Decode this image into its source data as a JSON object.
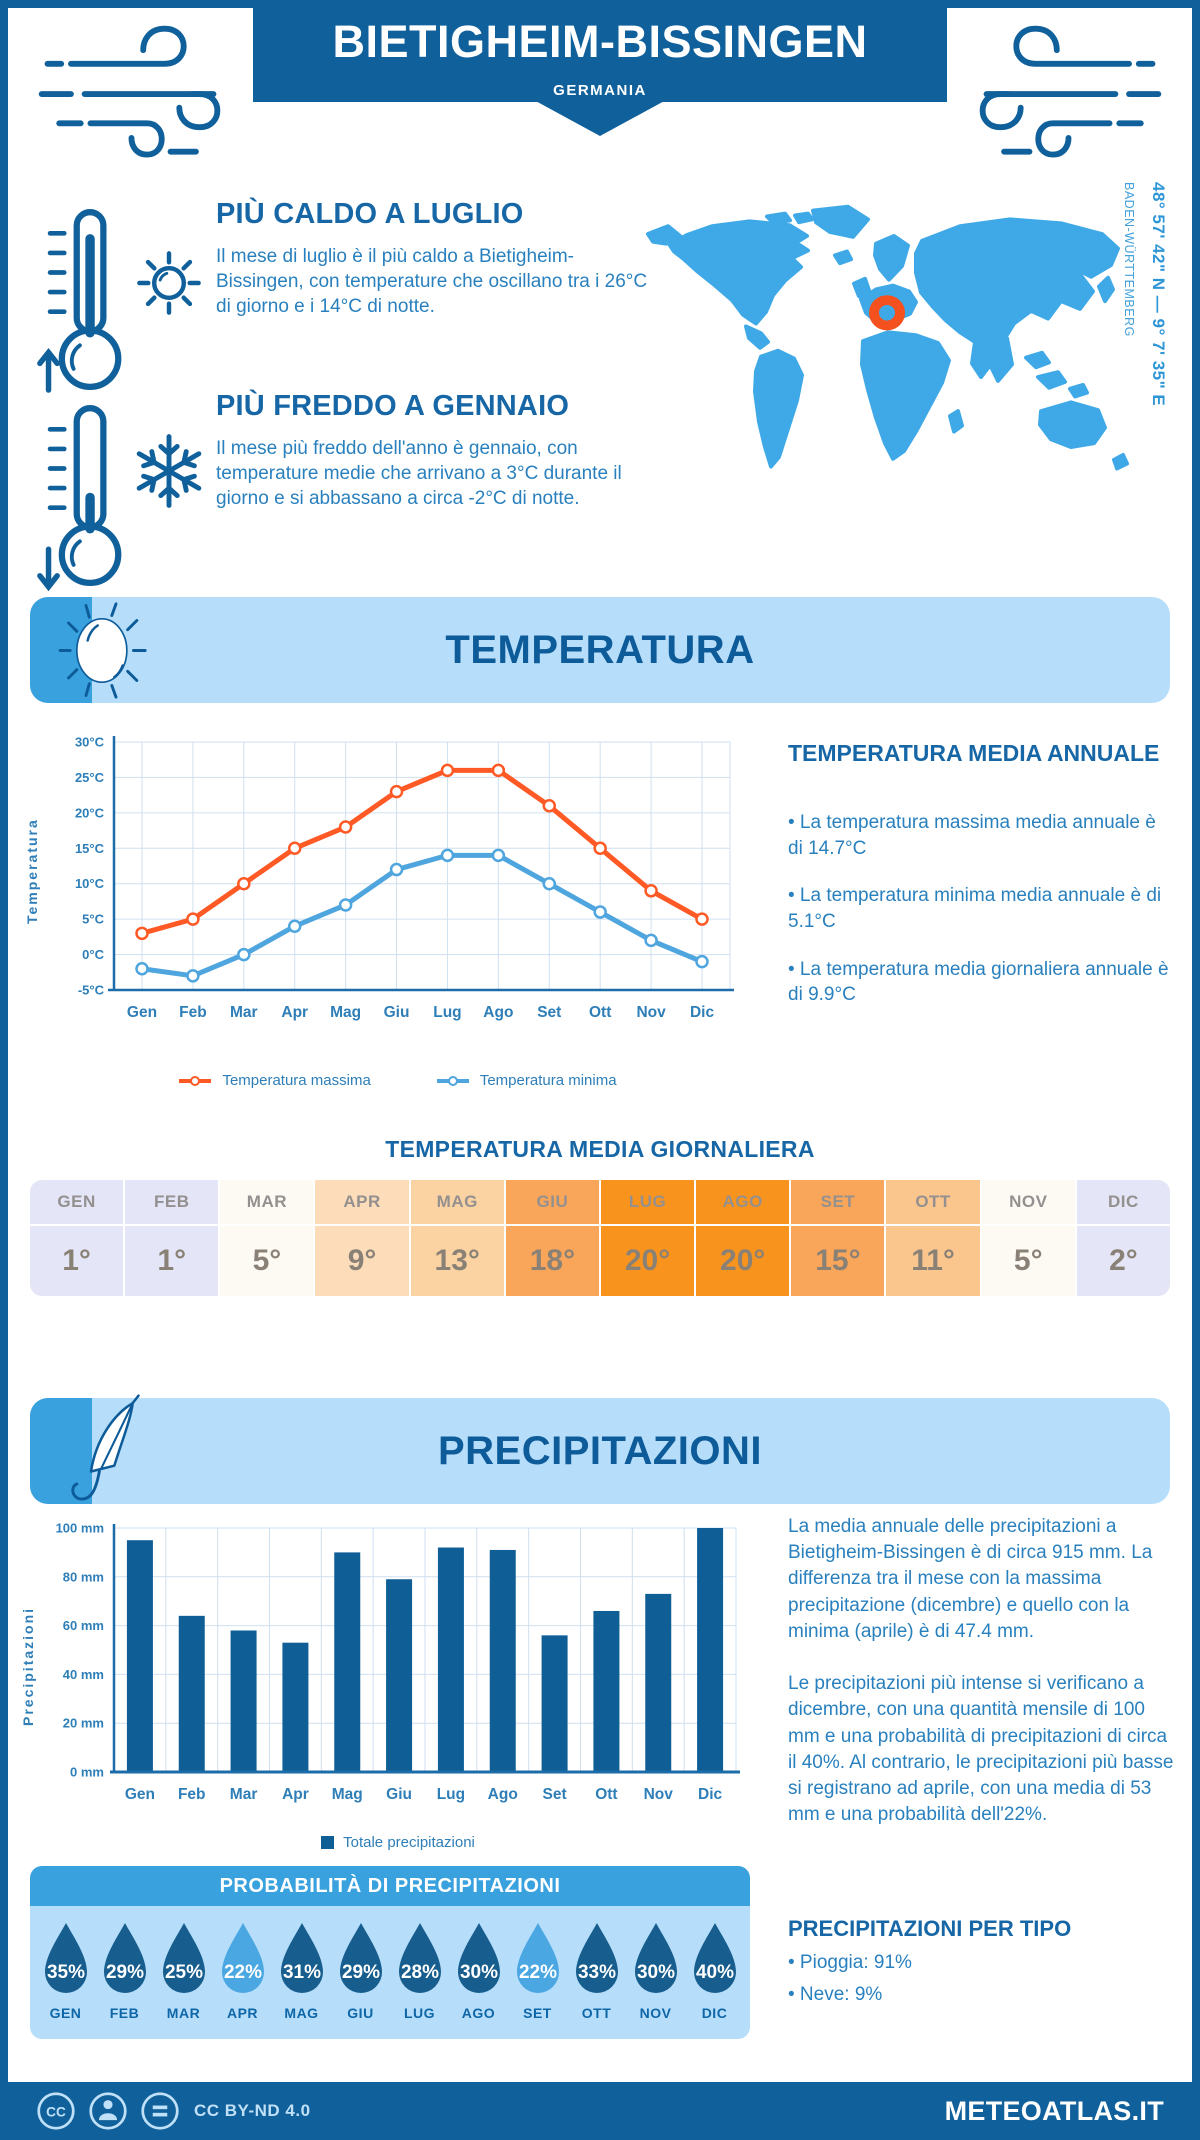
{
  "header": {
    "title": "BIETIGHEIM-BISSINGEN",
    "subtitle": "GERMANIA"
  },
  "location": {
    "coordinates": "48° 57' 42\" N — 9° 7' 35\" E",
    "region": "BADEN-WÜRTTEMBERG"
  },
  "highlights": {
    "warm": {
      "heading": "PIÙ CALDO A LUGLIO",
      "body": "Il mese di luglio è il più caldo a Bietigheim-Bissingen, con temperature che oscillano tra i 26°C di giorno e i 14°C di notte."
    },
    "cold": {
      "heading": "PIÙ FREDDO A GENNAIO",
      "body": "Il mese più freddo dell'anno è gennaio, con temperature medie che arrivano a 3°C durante il giorno e si abbassano a circa -2°C di notte."
    }
  },
  "temperature": {
    "banner": "TEMPERATURA",
    "annual_heading": "TEMPERATURA MEDIA ANNUALE",
    "annual_bullets": [
      "• La temperatura massima media annuale è di 14.7°C",
      "• La temperatura minima media annuale è di 5.1°C",
      "• La temperatura media giornaliera annuale è di 9.9°C"
    ],
    "daily_heading": "TEMPERATURA MEDIA GIORNALIERA"
  },
  "precipitation": {
    "banner": "PRECIPITAZIONI",
    "paragraph1": "La media annuale delle precipitazioni a Bietigheim-Bissingen è di circa 915 mm. La differenza tra il mese con la massima precipitazione (dicembre) e quello con la minima (aprile) è di 47.4 mm.",
    "paragraph2": "Le precipitazioni più intense si verificano a dicembre, con una quantità mensile di 100 mm e una probabilità di precipitazioni di circa il 40%. Al contrario, le precipitazioni più basse si registrano ad aprile, con una media di 53 mm e una probabilità dell'22%.",
    "probability_heading": "PROBABILITÀ DI PRECIPITAZIONI",
    "type_heading": "PRECIPITAZIONI PER TIPO",
    "type_bullets": [
      "• Pioggia: 91%",
      "• Neve: 9%"
    ]
  },
  "footer": {
    "license": "CC BY-ND 4.0",
    "site": "METEOATLAS.IT"
  },
  "colors": {
    "primary_dark": "#10609B",
    "accent_blue": "#38A1DE",
    "panel_light": "#B6DEFB",
    "banner_title": "#0D5B99",
    "heading": "#1767A6",
    "body_text": "#2980BE",
    "axis_text": "#2E7EB8",
    "axis_line": "#1B6CA8",
    "grid": "#CFE0F0",
    "line_max": "#FF5A26",
    "line_min": "#4FA5DE",
    "bar": "#0F5E96",
    "map_land": "#3FA9E8",
    "marker": "#F4511E",
    "drop_dark": "#175D8D",
    "drop_light": "#4AA7E2",
    "table_text": "#8A8176"
  },
  "chart_data": [
    {
      "type": "line",
      "title": "",
      "categories": [
        "Gen",
        "Feb",
        "Mar",
        "Apr",
        "Mag",
        "Giu",
        "Lug",
        "Ago",
        "Set",
        "Ott",
        "Nov",
        "Dic"
      ],
      "series": [
        {
          "name": "Temperatura massima",
          "color": "#FF5A26",
          "values": [
            3,
            5,
            10,
            15,
            18,
            23,
            26,
            26,
            21,
            15,
            9,
            5
          ]
        },
        {
          "name": "Temperatura minima",
          "color": "#4FA5DE",
          "values": [
            -2,
            -3,
            0,
            4,
            7,
            12,
            14,
            14,
            10,
            6,
            2,
            -1
          ]
        }
      ],
      "ylabel": "Temperatura",
      "ylim": [
        -5,
        30
      ],
      "ytick_step": 5,
      "ytick_suffix": "°C",
      "grid": true,
      "legend_position": "bottom"
    },
    {
      "type": "bar",
      "title": "",
      "categories": [
        "Gen",
        "Feb",
        "Mar",
        "Apr",
        "Mag",
        "Giu",
        "Lug",
        "Ago",
        "Set",
        "Ott",
        "Nov",
        "Dic"
      ],
      "series": [
        {
          "name": "Totale precipitazioni",
          "color": "#0F5E96",
          "values": [
            95,
            64,
            58,
            53,
            90,
            79,
            92,
            91,
            56,
            66,
            73,
            100
          ]
        }
      ],
      "ylabel": "Precipitazioni",
      "ylim": [
        0,
        100
      ],
      "ytick_step": 20,
      "ytick_suffix": " mm",
      "grid": true,
      "legend_position": "bottom"
    },
    {
      "type": "table",
      "title": "TEMPERATURA MEDIA GIORNALIERA",
      "columns": [
        "GEN",
        "FEB",
        "MAR",
        "APR",
        "MAG",
        "GIU",
        "LUG",
        "AGO",
        "SET",
        "OTT",
        "NOV",
        "DIC"
      ],
      "values": [
        "1°",
        "1°",
        "5°",
        "9°",
        "13°",
        "18°",
        "20°",
        "20°",
        "15°",
        "11°",
        "5°",
        "2°"
      ],
      "cell_colors": [
        "#E4E5F6",
        "#E4E5F6",
        "#FDF9F3",
        "#FCDCB9",
        "#FBD2A2",
        "#F9A65A",
        "#F8941E",
        "#F8941E",
        "#F9A65A",
        "#FBC68E",
        "#FDF9F3",
        "#E4E5F6"
      ]
    },
    {
      "type": "pictogram",
      "title": "PROBABILITÀ DI PRECIPITAZIONI",
      "categories": [
        "GEN",
        "FEB",
        "MAR",
        "APR",
        "MAG",
        "GIU",
        "LUG",
        "AGO",
        "SET",
        "OTT",
        "NOV",
        "DIC"
      ],
      "values": [
        "35%",
        "29%",
        "25%",
        "22%",
        "31%",
        "29%",
        "28%",
        "30%",
        "22%",
        "33%",
        "30%",
        "40%"
      ],
      "drop_colors": [
        "#175D8D",
        "#175D8D",
        "#175D8D",
        "#4AA7E2",
        "#175D8D",
        "#175D8D",
        "#175D8D",
        "#175D8D",
        "#4AA7E2",
        "#175D8D",
        "#175D8D",
        "#175D8D"
      ]
    }
  ]
}
